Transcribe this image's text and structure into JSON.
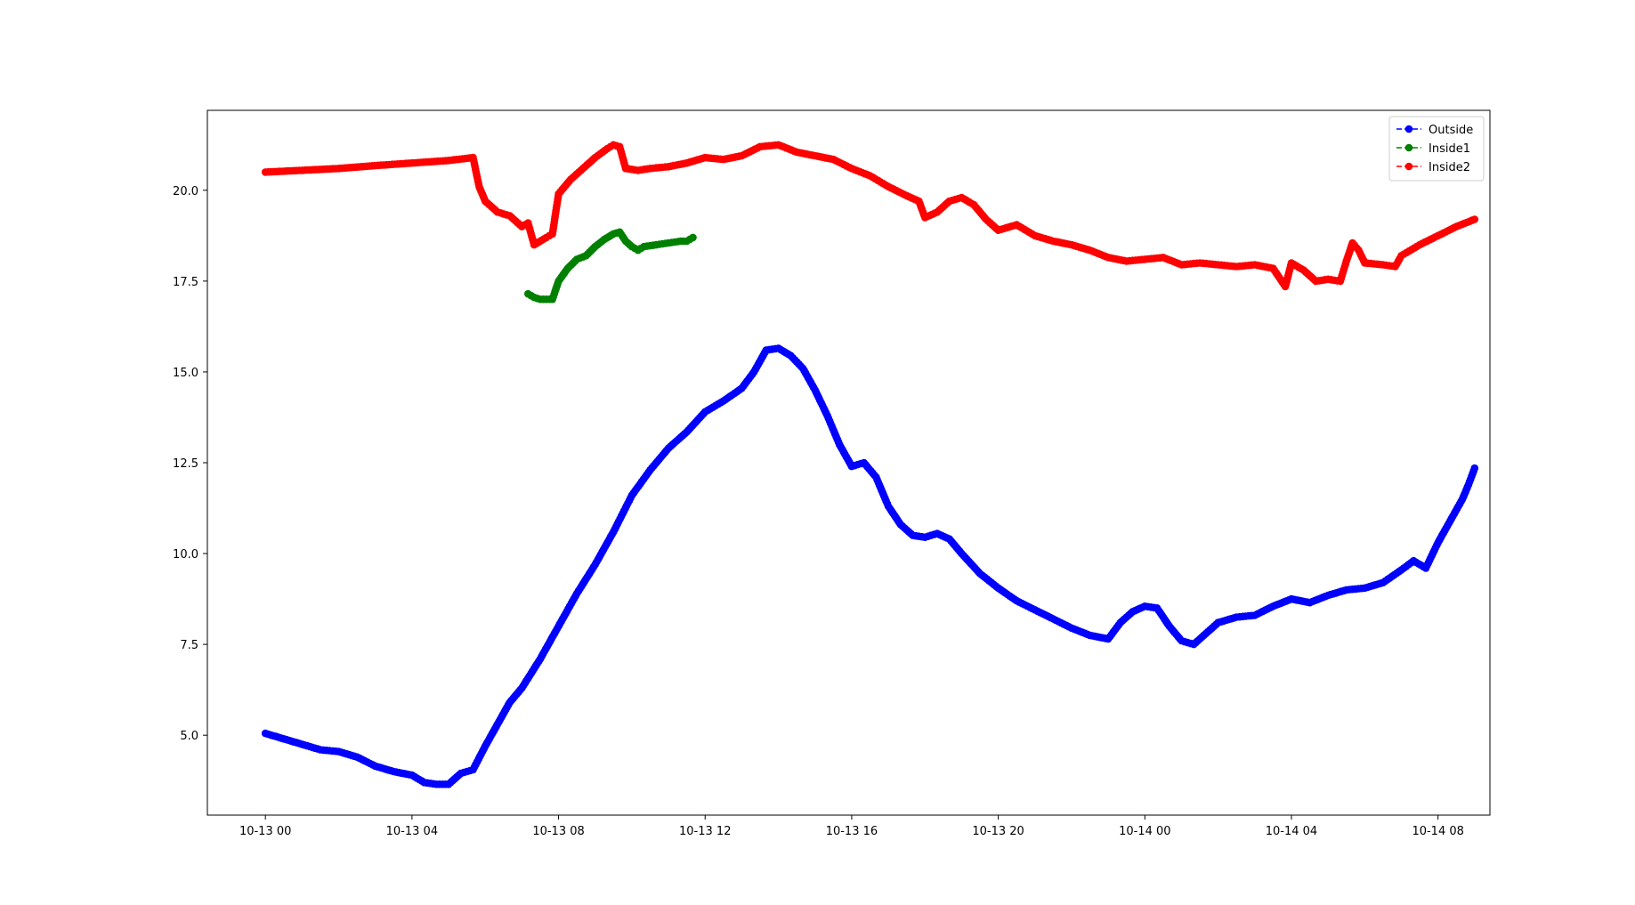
{
  "chart_data": {
    "type": "line",
    "title": "",
    "xlabel": "",
    "ylabel": "",
    "x_unit": "hours",
    "xlim": [
      "10-12 22:25",
      "10-14 09:25"
    ],
    "ylim": [
      2.8,
      22.2
    ],
    "grid": false,
    "legend_position": "top-right",
    "marker": "circle",
    "linestyle": "dashed",
    "x_ticks": [
      {
        "label": "10-13 00",
        "value": "10-13 00:00"
      },
      {
        "label": "10-13 04",
        "value": "10-13 04:00"
      },
      {
        "label": "10-13 08",
        "value": "10-13 08:00"
      },
      {
        "label": "10-13 12",
        "value": "10-13 12:00"
      },
      {
        "label": "10-13 16",
        "value": "10-13 16:00"
      },
      {
        "label": "10-13 20",
        "value": "10-13 20:00"
      },
      {
        "label": "10-14 00",
        "value": "10-14 00:00"
      },
      {
        "label": "10-14 04",
        "value": "10-14 04:00"
      },
      {
        "label": "10-14 08",
        "value": "10-14 08:00"
      }
    ],
    "y_ticks": [
      {
        "label": "5.0",
        "value": 5.0
      },
      {
        "label": "7.5",
        "value": 7.5
      },
      {
        "label": "10.0",
        "value": 10.0
      },
      {
        "label": "12.5",
        "value": 12.5
      },
      {
        "label": "15.0",
        "value": 15.0
      },
      {
        "label": "17.5",
        "value": 17.5
      },
      {
        "label": "20.0",
        "value": 20.0
      }
    ],
    "series": [
      {
        "name": "Outside",
        "color": "#0000ff",
        "points": [
          [
            "10-13 00:00",
            5.05
          ],
          [
            "10-13 00:30",
            4.9
          ],
          [
            "10-13 01:00",
            4.75
          ],
          [
            "10-13 01:30",
            4.6
          ],
          [
            "10-13 02:00",
            4.55
          ],
          [
            "10-13 02:30",
            4.4
          ],
          [
            "10-13 03:00",
            4.15
          ],
          [
            "10-13 03:30",
            4.0
          ],
          [
            "10-13 04:00",
            3.9
          ],
          [
            "10-13 04:20",
            3.7
          ],
          [
            "10-13 04:40",
            3.65
          ],
          [
            "10-13 05:00",
            3.65
          ],
          [
            "10-13 05:20",
            3.95
          ],
          [
            "10-13 05:40",
            4.05
          ],
          [
            "10-13 06:00",
            4.7
          ],
          [
            "10-13 06:20",
            5.3
          ],
          [
            "10-13 06:40",
            5.9
          ],
          [
            "10-13 07:00",
            6.3
          ],
          [
            "10-13 07:30",
            7.1
          ],
          [
            "10-13 08:00",
            8.0
          ],
          [
            "10-13 08:30",
            8.9
          ],
          [
            "10-13 09:00",
            9.7
          ],
          [
            "10-13 09:30",
            10.6
          ],
          [
            "10-13 10:00",
            11.6
          ],
          [
            "10-13 10:30",
            12.3
          ],
          [
            "10-13 11:00",
            12.9
          ],
          [
            "10-13 11:30",
            13.35
          ],
          [
            "10-13 12:00",
            13.9
          ],
          [
            "10-13 12:30",
            14.2
          ],
          [
            "10-13 13:00",
            14.55
          ],
          [
            "10-13 13:20",
            15.0
          ],
          [
            "10-13 13:40",
            15.6
          ],
          [
            "10-13 14:00",
            15.65
          ],
          [
            "10-13 14:20",
            15.45
          ],
          [
            "10-13 14:40",
            15.1
          ],
          [
            "10-13 15:00",
            14.5
          ],
          [
            "10-13 15:20",
            13.8
          ],
          [
            "10-13 15:40",
            13.0
          ],
          [
            "10-13 16:00",
            12.4
          ],
          [
            "10-13 16:20",
            12.5
          ],
          [
            "10-13 16:40",
            12.1
          ],
          [
            "10-13 17:00",
            11.3
          ],
          [
            "10-13 17:20",
            10.8
          ],
          [
            "10-13 17:40",
            10.5
          ],
          [
            "10-13 18:00",
            10.45
          ],
          [
            "10-13 18:20",
            10.55
          ],
          [
            "10-13 18:40",
            10.4
          ],
          [
            "10-13 19:00",
            10.0
          ],
          [
            "10-13 19:30",
            9.45
          ],
          [
            "10-13 20:00",
            9.05
          ],
          [
            "10-13 20:30",
            8.7
          ],
          [
            "10-13 21:00",
            8.45
          ],
          [
            "10-13 21:30",
            8.2
          ],
          [
            "10-13 22:00",
            7.95
          ],
          [
            "10-13 22:30",
            7.75
          ],
          [
            "10-13 23:00",
            7.65
          ],
          [
            "10-13 23:20",
            8.1
          ],
          [
            "10-13 23:40",
            8.4
          ],
          [
            "10-14 00:00",
            8.55
          ],
          [
            "10-14 00:20",
            8.5
          ],
          [
            "10-14 00:40",
            8.0
          ],
          [
            "10-14 01:00",
            7.6
          ],
          [
            "10-14 01:20",
            7.5
          ],
          [
            "10-14 01:40",
            7.8
          ],
          [
            "10-14 02:00",
            8.1
          ],
          [
            "10-14 02:30",
            8.25
          ],
          [
            "10-14 03:00",
            8.3
          ],
          [
            "10-14 03:30",
            8.55
          ],
          [
            "10-14 04:00",
            8.75
          ],
          [
            "10-14 04:30",
            8.65
          ],
          [
            "10-14 05:00",
            8.85
          ],
          [
            "10-14 05:30",
            9.0
          ],
          [
            "10-14 06:00",
            9.05
          ],
          [
            "10-14 06:30",
            9.2
          ],
          [
            "10-14 07:00",
            9.55
          ],
          [
            "10-14 07:20",
            9.8
          ],
          [
            "10-14 07:40",
            9.6
          ],
          [
            "10-14 08:00",
            10.3
          ],
          [
            "10-14 08:20",
            10.9
          ],
          [
            "10-14 08:40",
            11.5
          ],
          [
            "10-14 08:50",
            11.9
          ],
          [
            "10-14 09:00",
            12.35
          ]
        ]
      },
      {
        "name": "Inside1",
        "color": "#008000",
        "points": [
          [
            "10-13 07:10",
            17.15
          ],
          [
            "10-13 07:20",
            17.05
          ],
          [
            "10-13 07:30",
            17.0
          ],
          [
            "10-13 07:40",
            17.0
          ],
          [
            "10-13 07:50",
            17.0
          ],
          [
            "10-13 08:00",
            17.5
          ],
          [
            "10-13 08:15",
            17.85
          ],
          [
            "10-13 08:30",
            18.1
          ],
          [
            "10-13 08:45",
            18.2
          ],
          [
            "10-13 09:00",
            18.45
          ],
          [
            "10-13 09:15",
            18.65
          ],
          [
            "10-13 09:30",
            18.8
          ],
          [
            "10-13 09:40",
            18.85
          ],
          [
            "10-13 09:50",
            18.6
          ],
          [
            "10-13 10:00",
            18.45
          ],
          [
            "10-13 10:10",
            18.35
          ],
          [
            "10-13 10:20",
            18.45
          ],
          [
            "10-13 10:40",
            18.5
          ],
          [
            "10-13 11:00",
            18.55
          ],
          [
            "10-13 11:20",
            18.6
          ],
          [
            "10-13 11:30",
            18.6
          ],
          [
            "10-13 11:40",
            18.7
          ]
        ]
      },
      {
        "name": "Inside2",
        "color": "#ff0000",
        "points": [
          [
            "10-13 00:00",
            20.5
          ],
          [
            "10-13 01:00",
            20.55
          ],
          [
            "10-13 02:00",
            20.6
          ],
          [
            "10-13 03:00",
            20.68
          ],
          [
            "10-13 04:00",
            20.75
          ],
          [
            "10-13 05:00",
            20.82
          ],
          [
            "10-13 05:40",
            20.9
          ],
          [
            "10-13 05:50",
            20.1
          ],
          [
            "10-13 06:00",
            19.7
          ],
          [
            "10-13 06:20",
            19.4
          ],
          [
            "10-13 06:40",
            19.3
          ],
          [
            "10-13 07:00",
            19.0
          ],
          [
            "10-13 07:10",
            19.1
          ],
          [
            "10-13 07:20",
            18.5
          ],
          [
            "10-13 07:40",
            18.7
          ],
          [
            "10-13 07:50",
            18.8
          ],
          [
            "10-13 08:00",
            19.9
          ],
          [
            "10-13 08:20",
            20.3
          ],
          [
            "10-13 08:40",
            20.6
          ],
          [
            "10-13 09:00",
            20.9
          ],
          [
            "10-13 09:20",
            21.15
          ],
          [
            "10-13 09:30",
            21.25
          ],
          [
            "10-13 09:40",
            21.2
          ],
          [
            "10-13 09:50",
            20.6
          ],
          [
            "10-13 10:10",
            20.55
          ],
          [
            "10-13 10:30",
            20.6
          ],
          [
            "10-13 11:00",
            20.65
          ],
          [
            "10-13 11:30",
            20.75
          ],
          [
            "10-13 12:00",
            20.9
          ],
          [
            "10-13 12:30",
            20.85
          ],
          [
            "10-13 13:00",
            20.95
          ],
          [
            "10-13 13:30",
            21.2
          ],
          [
            "10-13 14:00",
            21.25
          ],
          [
            "10-13 14:30",
            21.05
          ],
          [
            "10-13 15:00",
            20.95
          ],
          [
            "10-13 15:30",
            20.85
          ],
          [
            "10-13 16:00",
            20.6
          ],
          [
            "10-13 16:30",
            20.4
          ],
          [
            "10-13 17:00",
            20.1
          ],
          [
            "10-13 17:30",
            19.85
          ],
          [
            "10-13 17:50",
            19.7
          ],
          [
            "10-13 18:00",
            19.25
          ],
          [
            "10-13 18:20",
            19.4
          ],
          [
            "10-13 18:40",
            19.7
          ],
          [
            "10-13 19:00",
            19.8
          ],
          [
            "10-13 19:20",
            19.6
          ],
          [
            "10-13 19:40",
            19.2
          ],
          [
            "10-13 20:00",
            18.9
          ],
          [
            "10-13 20:30",
            19.05
          ],
          [
            "10-13 21:00",
            18.75
          ],
          [
            "10-13 21:30",
            18.6
          ],
          [
            "10-13 22:00",
            18.5
          ],
          [
            "10-13 22:30",
            18.35
          ],
          [
            "10-13 23:00",
            18.15
          ],
          [
            "10-13 23:30",
            18.05
          ],
          [
            "10-14 00:00",
            18.1
          ],
          [
            "10-14 00:30",
            18.15
          ],
          [
            "10-14 01:00",
            17.95
          ],
          [
            "10-14 01:30",
            18.0
          ],
          [
            "10-14 02:00",
            17.95
          ],
          [
            "10-14 02:30",
            17.9
          ],
          [
            "10-14 03:00",
            17.95
          ],
          [
            "10-14 03:30",
            17.85
          ],
          [
            "10-14 03:50",
            17.35
          ],
          [
            "10-14 04:00",
            18.0
          ],
          [
            "10-14 04:20",
            17.8
          ],
          [
            "10-14 04:40",
            17.5
          ],
          [
            "10-14 05:00",
            17.55
          ],
          [
            "10-14 05:20",
            17.5
          ],
          [
            "10-14 05:30",
            18.05
          ],
          [
            "10-14 05:40",
            18.55
          ],
          [
            "10-14 05:50",
            18.35
          ],
          [
            "10-14 06:00",
            18.0
          ],
          [
            "10-14 06:30",
            17.95
          ],
          [
            "10-14 06:50",
            17.9
          ],
          [
            "10-14 07:00",
            18.2
          ],
          [
            "10-14 07:30",
            18.5
          ],
          [
            "10-14 08:00",
            18.75
          ],
          [
            "10-14 08:30",
            19.0
          ],
          [
            "10-14 09:00",
            19.2
          ]
        ]
      }
    ]
  }
}
